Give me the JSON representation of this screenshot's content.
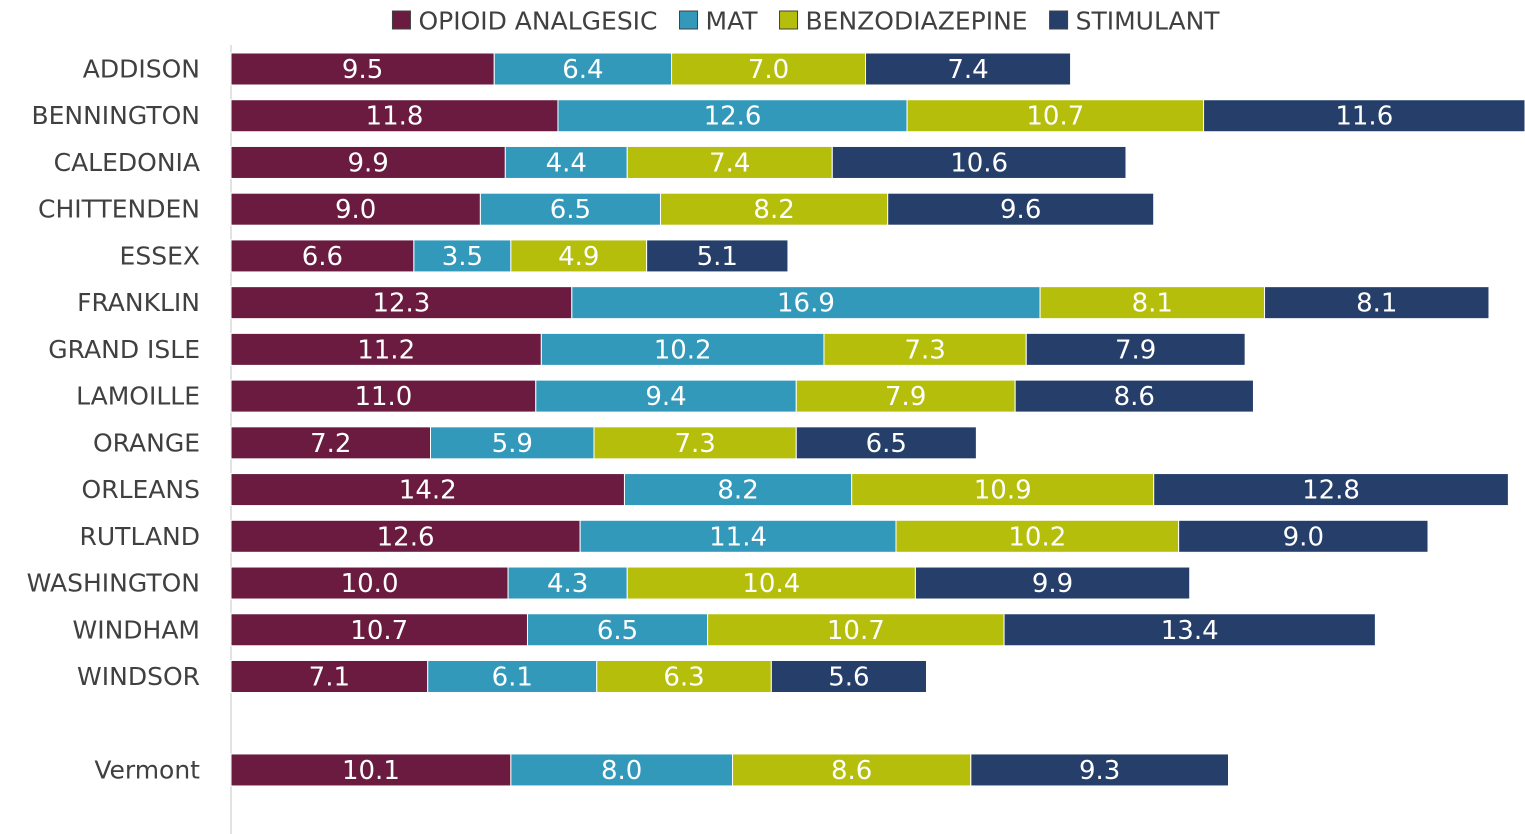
{
  "chart_data": {
    "type": "stacked-bar-horizontal",
    "categories": [
      "ADDISON",
      "BENNINGTON",
      "CALEDONIA",
      "CHITTENDEN",
      "ESSEX",
      "FRANKLIN",
      "GRAND ISLE",
      "LAMOILLE",
      "ORANGE",
      "ORLEANS",
      "RUTLAND",
      "WASHINGTON",
      "WINDHAM",
      "WINDSOR",
      null,
      "Vermont"
    ],
    "xlim": [
      0,
      46.7
    ],
    "legend": "top",
    "series": [
      {
        "name": "OPIOID ANALGESIC",
        "color": "#6a1b3f",
        "values": [
          9.5,
          11.8,
          9.9,
          9.0,
          6.6,
          12.3,
          11.2,
          11.0,
          7.2,
          14.2,
          12.6,
          10.0,
          10.7,
          7.1,
          null,
          10.1
        ],
        "value_labels": [
          "9.5",
          "11.8",
          "9.9",
          "9.0",
          "6.6",
          "12.3",
          "11.2",
          "11.0",
          "7.2",
          "14.2",
          "12.6",
          "10.0",
          "10.7",
          "7.1",
          null,
          "10.1"
        ]
      },
      {
        "name": "MAT",
        "color": "#3399bb",
        "values": [
          6.4,
          12.6,
          4.4,
          6.5,
          3.5,
          16.9,
          10.2,
          9.4,
          5.9,
          8.2,
          11.4,
          4.3,
          6.5,
          6.1,
          null,
          8.0
        ],
        "value_labels": [
          "6.4",
          "12.6",
          "4.4",
          "6.5",
          "3.5",
          "16.9",
          "10.2",
          "9.4",
          "5.9",
          "8.2",
          "11.4",
          "4.3",
          "6.5",
          "6.1",
          null,
          "8.0"
        ]
      },
      {
        "name": "BENZODIAZEPINE",
        "color": "#b5be0a",
        "values": [
          7.0,
          10.7,
          7.4,
          8.2,
          4.9,
          8.1,
          7.3,
          7.9,
          7.3,
          10.9,
          10.2,
          10.4,
          10.7,
          6.3,
          null,
          8.6
        ],
        "value_labels": [
          "7.0",
          "10.7",
          "7.4",
          "8.2",
          "4.9",
          "8.1",
          "7.3",
          "7.9",
          "7.3",
          "10.9",
          "10.2",
          "10.4",
          "10.7",
          "6.3",
          null,
          "8.6"
        ]
      },
      {
        "name": "STIMULANT",
        "color": "#253f6a",
        "values": [
          7.4,
          11.6,
          10.6,
          9.6,
          5.1,
          8.1,
          7.9,
          8.6,
          6.5,
          12.8,
          9.0,
          9.9,
          13.4,
          5.6,
          null,
          9.3
        ],
        "value_labels": [
          "7.4",
          "11.6",
          "10.6",
          "9.6",
          "5.1",
          "8.1",
          "7.9",
          "8.6",
          "6.5",
          "12.8",
          "9.0",
          "9.9",
          "13.4",
          "5.6",
          null,
          "9.3"
        ]
      }
    ]
  }
}
